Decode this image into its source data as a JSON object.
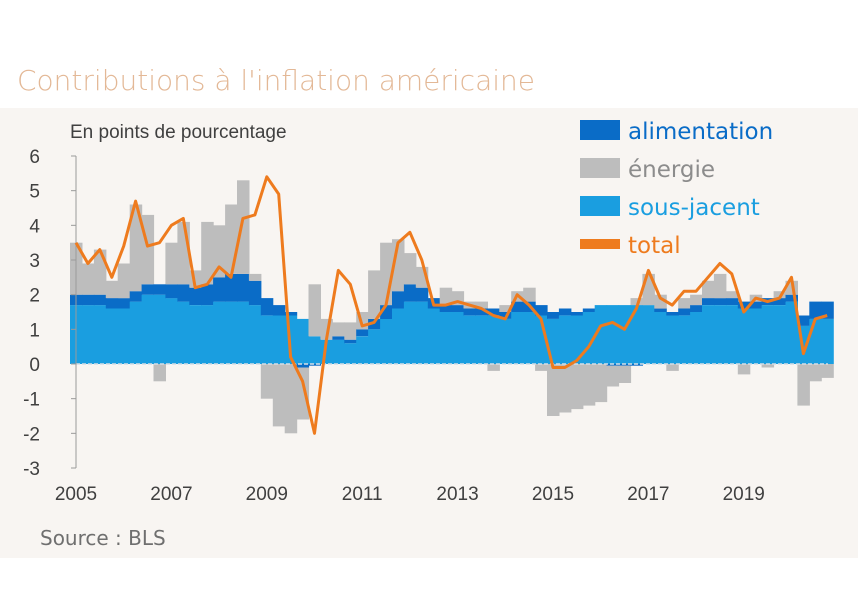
{
  "title": "Contributions à l'inflation américaine",
  "source": "Source : BLS",
  "chart_data": {
    "type": "area",
    "ylabel": "En points de pourcentage",
    "ylim": [
      -3,
      6
    ],
    "yticks": [
      "6",
      "5",
      "4",
      "3",
      "2",
      "1",
      "0",
      "-1",
      "-2",
      "-3"
    ],
    "xticks": [
      "2005",
      "2007",
      "2009",
      "2011",
      "2013",
      "2015",
      "2017",
      "2019"
    ],
    "legend_position": "top-right",
    "x": [
      2005.0,
      2005.25,
      2005.5,
      2005.75,
      2006.0,
      2006.25,
      2006.5,
      2006.75,
      2007.0,
      2007.25,
      2007.5,
      2007.75,
      2008.0,
      2008.25,
      2008.5,
      2008.75,
      2009.0,
      2009.25,
      2009.5,
      2009.75,
      2010.0,
      2010.25,
      2010.5,
      2010.75,
      2011.0,
      2011.25,
      2011.5,
      2011.75,
      2012.0,
      2012.25,
      2012.5,
      2012.75,
      2013.0,
      2013.25,
      2013.5,
      2013.75,
      2014.0,
      2014.25,
      2014.5,
      2014.75,
      2015.0,
      2015.25,
      2015.5,
      2015.75,
      2016.0,
      2016.25,
      2016.5,
      2016.75,
      2017.0,
      2017.25,
      2017.5,
      2017.75,
      2018.0,
      2018.25,
      2018.5,
      2018.75,
      2019.0,
      2019.25,
      2019.5,
      2019.75,
      2020.0,
      2020.25,
      2020.5,
      2020.75
    ],
    "series": [
      {
        "name": "alimentation",
        "color": "#0a6cc7",
        "type": "area",
        "values": [
          0.3,
          0.3,
          0.3,
          0.3,
          0.3,
          0.3,
          0.3,
          0.3,
          0.4,
          0.5,
          0.5,
          0.6,
          0.7,
          0.8,
          0.8,
          0.7,
          0.5,
          0.3,
          0.1,
          -0.1,
          -0.05,
          0.0,
          0.1,
          0.1,
          0.2,
          0.3,
          0.4,
          0.5,
          0.5,
          0.4,
          0.3,
          0.2,
          0.2,
          0.2,
          0.2,
          0.2,
          0.2,
          0.3,
          0.3,
          0.3,
          0.2,
          0.2,
          0.1,
          0.1,
          0.0,
          -0.05,
          -0.05,
          -0.05,
          0.0,
          0.1,
          0.1,
          0.2,
          0.2,
          0.2,
          0.2,
          0.2,
          0.2,
          0.2,
          0.2,
          0.2,
          0.2,
          0.3,
          0.5,
          0.5
        ]
      },
      {
        "name": "énergie",
        "color": "#bdbdbd",
        "type": "area",
        "values": [
          1.5,
          0.9,
          1.3,
          0.5,
          1.0,
          2.5,
          2.0,
          -0.5,
          1.2,
          1.8,
          0.5,
          1.8,
          1.5,
          2.0,
          2.7,
          0.2,
          -1.0,
          -1.8,
          -2.0,
          -1.5,
          1.5,
          0.6,
          0.4,
          0.5,
          0.5,
          1.4,
          1.8,
          1.5,
          0.9,
          0.6,
          0.0,
          0.5,
          0.4,
          0.2,
          0.2,
          -0.2,
          0.2,
          0.3,
          0.4,
          -0.2,
          -1.5,
          -1.4,
          -1.3,
          -1.2,
          -1.1,
          -0.6,
          -0.5,
          0.2,
          0.9,
          0.4,
          -0.2,
          0.3,
          0.3,
          0.5,
          0.7,
          0.2,
          -0.3,
          0.2,
          -0.1,
          0.2,
          0.4,
          -1.2,
          -0.5,
          -0.4
        ]
      },
      {
        "name": "sous-jacent",
        "color": "#1a9ee0",
        "type": "area",
        "values": [
          1.7,
          1.7,
          1.7,
          1.6,
          1.6,
          1.8,
          2.0,
          2.0,
          1.9,
          1.8,
          1.7,
          1.7,
          1.8,
          1.8,
          1.8,
          1.7,
          1.4,
          1.4,
          1.4,
          1.3,
          0.8,
          0.7,
          0.7,
          0.6,
          0.8,
          1.0,
          1.3,
          1.6,
          1.8,
          1.8,
          1.6,
          1.5,
          1.5,
          1.4,
          1.4,
          1.4,
          1.3,
          1.5,
          1.5,
          1.4,
          1.3,
          1.4,
          1.4,
          1.5,
          1.7,
          1.7,
          1.7,
          1.7,
          1.7,
          1.5,
          1.4,
          1.4,
          1.5,
          1.7,
          1.7,
          1.7,
          1.6,
          1.6,
          1.7,
          1.7,
          1.8,
          1.1,
          1.3,
          1.3
        ]
      },
      {
        "name": "total",
        "color": "#ee7b1e",
        "type": "line",
        "values": [
          3.5,
          2.9,
          3.3,
          2.5,
          3.4,
          4.7,
          3.4,
          3.5,
          4.0,
          4.2,
          2.2,
          2.3,
          2.8,
          2.5,
          4.2,
          4.3,
          5.4,
          4.9,
          0.2,
          -0.5,
          -2.0,
          0.7,
          2.7,
          2.3,
          1.1,
          1.2,
          1.7,
          3.5,
          3.8,
          3.0,
          1.7,
          1.7,
          1.8,
          1.7,
          1.6,
          1.4,
          1.3,
          2.0,
          1.7,
          1.3,
          -0.1,
          -0.1,
          0.1,
          0.5,
          1.1,
          1.2,
          1.0,
          1.6,
          2.7,
          1.9,
          1.7,
          2.1,
          2.1,
          2.5,
          2.9,
          2.6,
          1.5,
          1.9,
          1.8,
          1.9,
          2.5,
          0.3,
          1.3,
          1.4
        ]
      }
    ]
  }
}
